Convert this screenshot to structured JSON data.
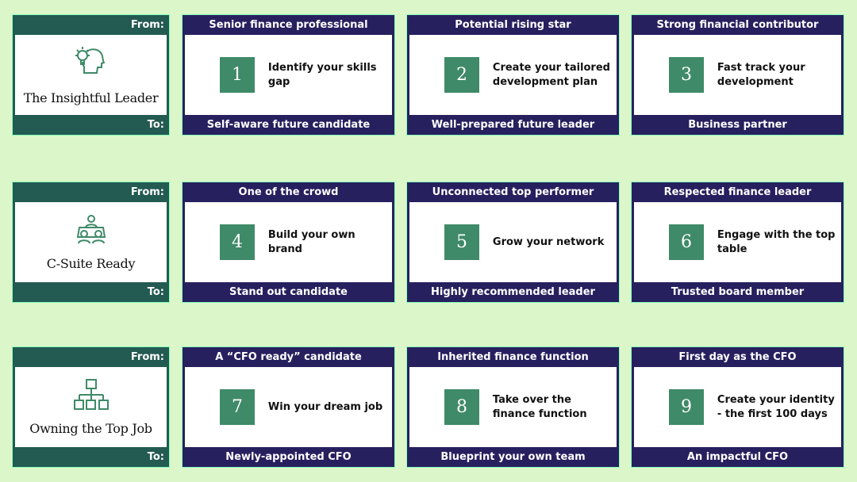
{
  "labels": {
    "from": "From:",
    "to": "To:"
  },
  "colors": {
    "background": "#dbf7c9",
    "leader_card": "#235a52",
    "step_card": "#27205f",
    "number_box": "#3f8a68"
  },
  "rows": [
    {
      "title": "The Insightful Leader",
      "icon": "lightbulb-head-icon",
      "steps": [
        {
          "from": "Senior finance professional",
          "number": "1",
          "text": "Identify your skills gap",
          "to": "Self-aware future candidate"
        },
        {
          "from": "Potential rising star",
          "number": "2",
          "text": "Create your tailored development plan",
          "to": "Well-prepared future leader"
        },
        {
          "from": "Strong financial contributor",
          "number": "3",
          "text": "Fast track your development",
          "to": "Business partner"
        }
      ]
    },
    {
      "title": "C-Suite Ready",
      "icon": "meeting-table-icon",
      "steps": [
        {
          "from": "One of the crowd",
          "number": "4",
          "text": "Build your own brand",
          "to": "Stand out candidate"
        },
        {
          "from": "Unconnected top performer",
          "number": "5",
          "text": "Grow your network",
          "to": "Highly recommended leader"
        },
        {
          "from": "Respected finance leader",
          "number": "6",
          "text": "Engage with the top table",
          "to": "Trusted board member"
        }
      ]
    },
    {
      "title": "Owning the Top Job",
      "icon": "org-chart-icon",
      "steps": [
        {
          "from": "A “CFO ready” candidate",
          "number": "7",
          "text": "Win your dream job",
          "to": "Newly-appointed CFO"
        },
        {
          "from": "Inherited finance function",
          "number": "8",
          "text": "Take over the finance function",
          "to": "Blueprint your own team"
        },
        {
          "from": "First day as the CFO",
          "number": "9",
          "text": "Create your identity - the first 100 days",
          "to": "An impactful CFO"
        }
      ]
    }
  ]
}
